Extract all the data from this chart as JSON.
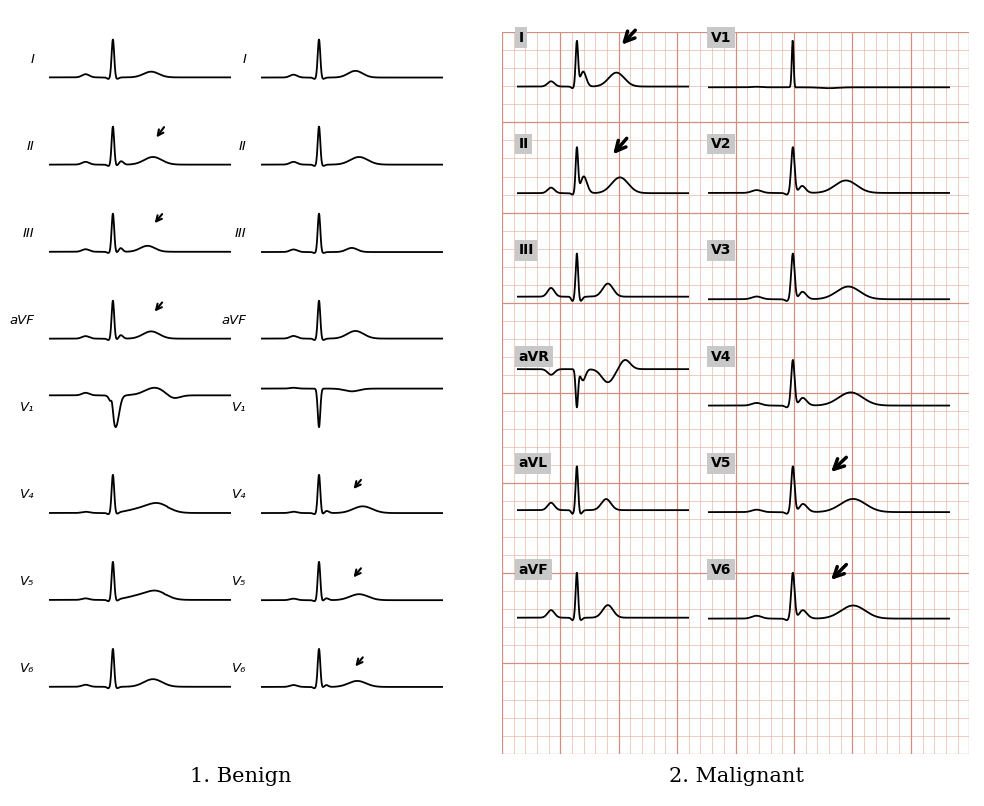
{
  "title_benign": "1. Benign",
  "title_malignant": "2. Malignant",
  "bg_color": "#ffffff",
  "ecg_color": "#000000",
  "grid_color_minor": "#e8b8a8",
  "grid_color_major": "#d09080",
  "grid_bg": "#f8ece0",
  "label_bg": "#c8c8c8",
  "benign_left_labels": [
    "I",
    "II",
    "III",
    "aVF",
    "V1",
    "V4",
    "V5",
    "V6"
  ],
  "benign_right_labels": [
    "I",
    "II",
    "III",
    "aVF",
    "V1",
    "V4",
    "V5",
    "V6"
  ],
  "mal_left_labels": [
    "I",
    "II",
    "III",
    "aVR",
    "aVL",
    "aVF"
  ],
  "mal_right_labels": [
    "V1",
    "V2",
    "V3",
    "V4",
    "V5",
    "V6"
  ]
}
